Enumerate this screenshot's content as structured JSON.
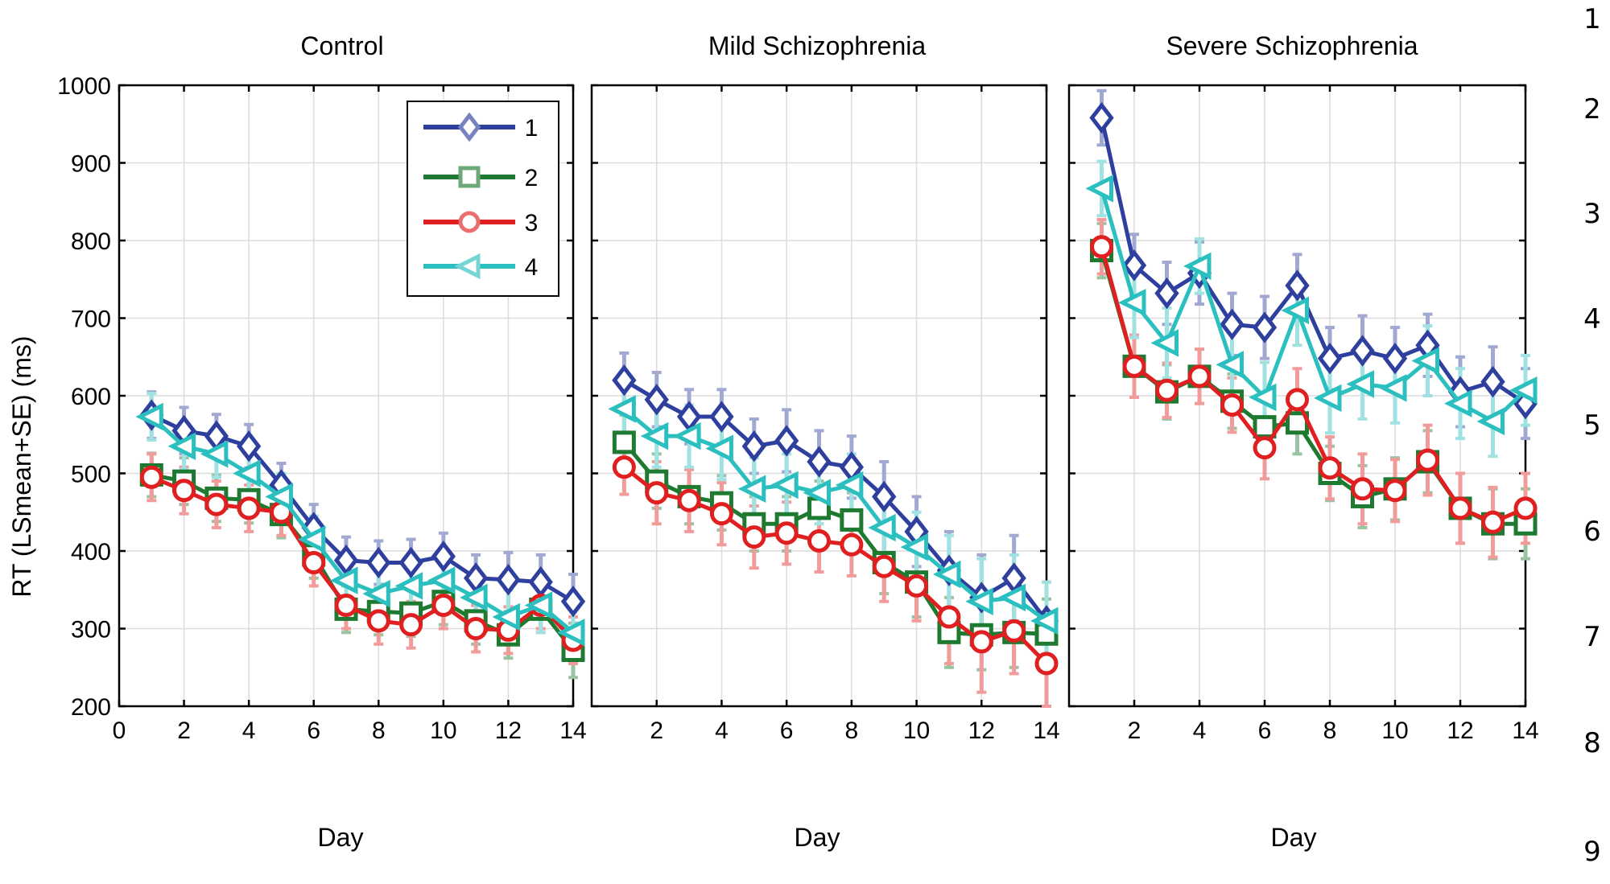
{
  "chart_data": {
    "type": "line",
    "ylabel": "RT (LSmean+SE) (ms)",
    "xlabel": "Day",
    "ylim": [
      200,
      1000
    ],
    "yticks": [
      200,
      300,
      400,
      500,
      600,
      700,
      800,
      900,
      1000
    ],
    "legend": {
      "placement": "top-right of first panel",
      "entries": [
        "1",
        "2",
        "3",
        "4"
      ]
    },
    "series_styles": [
      {
        "name": "1",
        "color": "#2e3f9e",
        "marker": "diamond"
      },
      {
        "name": "2",
        "color": "#1e7a30",
        "marker": "square"
      },
      {
        "name": "3",
        "color": "#e02020",
        "marker": "circle"
      },
      {
        "name": "4",
        "color": "#2bbfbf",
        "marker": "triangle-left"
      }
    ],
    "panels": [
      {
        "title": "Control",
        "xlim": [
          0,
          14
        ],
        "xticks": [
          "0",
          "2",
          "4",
          "6",
          "8",
          "10",
          "12",
          "14"
        ],
        "xtick_values": [
          0,
          2,
          4,
          6,
          8,
          10,
          12,
          14
        ],
        "x": [
          1,
          2,
          3,
          4,
          5,
          6,
          7,
          8,
          9,
          10,
          11,
          12,
          13,
          14
        ],
        "series": [
          {
            "name": "1",
            "values": [
              575,
              555,
              548,
              535,
              485,
              430,
              388,
              385,
              385,
              393,
              365,
              363,
              360,
              335
            ],
            "errors": [
              30,
              30,
              28,
              28,
              28,
              30,
              30,
              28,
              30,
              30,
              30,
              35,
              35,
              35
            ]
          },
          {
            "name": "2",
            "values": [
              498,
              490,
              468,
              466,
              447,
              395,
              325,
              322,
              320,
              335,
              310,
              292,
              325,
              272
            ],
            "errors": [
              28,
              30,
              30,
              30,
              30,
              30,
              30,
              30,
              30,
              30,
              30,
              30,
              30,
              35
            ]
          },
          {
            "name": "3",
            "values": [
              495,
              478,
              460,
              455,
              450,
              385,
              330,
              310,
              305,
              330,
              300,
              298,
              330,
              285
            ],
            "errors": [
              30,
              30,
              30,
              30,
              30,
              30,
              30,
              30,
              30,
              30,
              30,
              30,
              30,
              30
            ]
          },
          {
            "name": "4",
            "values": [
              573,
              535,
              525,
              500,
              470,
              415,
              362,
              345,
              355,
              362,
              340,
              315,
              330,
              295
            ],
            "errors": [
              30,
              30,
              30,
              30,
              30,
              30,
              30,
              30,
              30,
              30,
              30,
              35,
              35,
              35
            ]
          }
        ]
      },
      {
        "title": "Mild Schizophrenia",
        "xlim": [
          0,
          14
        ],
        "xticks": [
          "2",
          "4",
          "6",
          "8",
          "10",
          "12",
          "14"
        ],
        "xtick_values": [
          2,
          4,
          6,
          8,
          10,
          12,
          14
        ],
        "x": [
          1,
          2,
          3,
          4,
          5,
          6,
          7,
          8,
          9,
          10,
          11,
          12,
          13,
          14
        ],
        "series": [
          {
            "name": "1",
            "values": [
              620,
              595,
              573,
              573,
              535,
              542,
              515,
              508,
              470,
              425,
              375,
              340,
              365,
              310
            ],
            "errors": [
              35,
              35,
              35,
              35,
              35,
              40,
              40,
              40,
              45,
              45,
              50,
              55,
              55,
              50
            ]
          },
          {
            "name": "2",
            "values": [
              540,
              490,
              470,
              462,
              435,
              435,
              455,
              440,
              385,
              360,
              295,
              292,
              295,
              293
            ],
            "errors": [
              35,
              35,
              35,
              35,
              35,
              35,
              35,
              35,
              40,
              45,
              45,
              45,
              45,
              45
            ]
          },
          {
            "name": "3",
            "values": [
              508,
              475,
              465,
              448,
              418,
              423,
              413,
              408,
              380,
              355,
              315,
              283,
              297,
              255
            ],
            "errors": [
              35,
              40,
              40,
              40,
              40,
              40,
              40,
              40,
              45,
              45,
              60,
              65,
              55,
              55
            ]
          },
          {
            "name": "4",
            "values": [
              583,
              548,
              548,
              532,
              480,
              485,
              475,
              485,
              430,
              405,
              370,
              335,
              340,
              310
            ],
            "errors": [
              40,
              40,
              40,
              40,
              40,
              40,
              40,
              40,
              45,
              45,
              50,
              55,
              55,
              50
            ]
          }
        ]
      },
      {
        "title": "Severe Schizophrenia",
        "xlim": [
          0,
          14
        ],
        "xticks": [
          "2",
          "4",
          "6",
          "8",
          "10",
          "12",
          "14"
        ],
        "xtick_values": [
          2,
          4,
          6,
          8,
          10,
          12,
          14
        ],
        "x": [
          1,
          2,
          3,
          4,
          5,
          6,
          7,
          8,
          9,
          10,
          11,
          12,
          13,
          14
        ],
        "series": [
          {
            "name": "1",
            "values": [
              958,
              768,
              732,
              758,
              692,
              688,
              742,
              648,
              658,
              648,
              665,
              605,
              618,
              590
            ],
            "errors": [
              35,
              40,
              40,
              40,
              40,
              40,
              40,
              40,
              45,
              40,
              40,
              45,
              45,
              45
            ]
          },
          {
            "name": "2",
            "values": [
              787,
              638,
              605,
              625,
              593,
              560,
              565,
              500,
              470,
              480,
              515,
              455,
              435,
              435
            ],
            "errors": [
              35,
              40,
              35,
              35,
              35,
              35,
              40,
              35,
              40,
              40,
              40,
              45,
              45,
              45
            ]
          },
          {
            "name": "3",
            "values": [
              792,
              638,
              607,
              625,
              588,
              533,
              595,
              507,
              480,
              478,
              517,
              455,
              437,
              455
            ],
            "errors": [
              35,
              40,
              35,
              35,
              35,
              40,
              40,
              40,
              45,
              40,
              45,
              45,
              45,
              45
            ]
          },
          {
            "name": "4",
            "values": [
              867,
              720,
              668,
              767,
              640,
              598,
              710,
              597,
              615,
              610,
              645,
              590,
              567,
              607
            ],
            "errors": [
              35,
              45,
              45,
              35,
              45,
              45,
              45,
              45,
              45,
              45,
              45,
              45,
              45,
              45
            ]
          }
        ]
      }
    ]
  },
  "side_labels": [
    "1",
    "2",
    "3",
    "4",
    "5",
    "6",
    "7",
    "8",
    "9"
  ]
}
